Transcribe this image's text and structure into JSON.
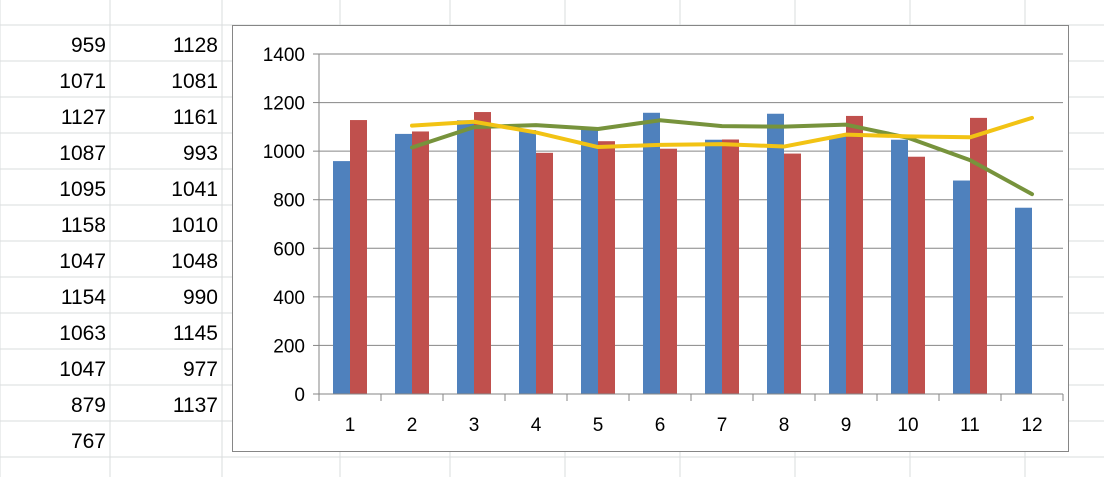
{
  "sheet": {
    "column_a": [
      "959",
      "1071",
      "1127",
      "1087",
      "1095",
      "1158",
      "1047",
      "1154",
      "1063",
      "1047",
      "879",
      "767"
    ],
    "column_b": [
      "1128",
      "1081",
      "1161",
      "993",
      "1041",
      "1010",
      "1048",
      "990",
      "1145",
      "977",
      "1137"
    ]
  },
  "chart_data": {
    "type": "bar",
    "categories": [
      "1",
      "2",
      "3",
      "4",
      "5",
      "6",
      "7",
      "8",
      "9",
      "10",
      "11",
      "12"
    ],
    "ylim": [
      0,
      1400
    ],
    "yticks": [
      0,
      200,
      400,
      600,
      800,
      1000,
      1200,
      1400
    ],
    "ytick_labels": [
      "0",
      "200",
      "400",
      "600",
      "800",
      "1000",
      "1200",
      "1400"
    ],
    "grid": true,
    "legend": "none",
    "title": "",
    "xlabel": "",
    "ylabel": "",
    "series": [
      {
        "type": "bar",
        "color": "#4F81BD",
        "values": [
          959,
          1071,
          1127,
          1087,
          1095,
          1158,
          1047,
          1154,
          1063,
          1047,
          879,
          767
        ]
      },
      {
        "type": "bar",
        "color": "#C0504D",
        "values": [
          1128,
          1081,
          1161,
          993,
          1041,
          1010,
          1048,
          990,
          1145,
          977,
          1137,
          null
        ]
      },
      {
        "type": "line",
        "color": "#77933C",
        "values": [
          null,
          1015,
          1099,
          1107,
          1091,
          1127,
          1103,
          1101,
          1109,
          1055,
          963,
          823
        ]
      },
      {
        "type": "line",
        "color": "#F2C314",
        "values": [
          null,
          1105,
          1121,
          1077,
          1017,
          1026,
          1029,
          1019,
          1068,
          1061,
          1057,
          1137
        ]
      }
    ]
  }
}
